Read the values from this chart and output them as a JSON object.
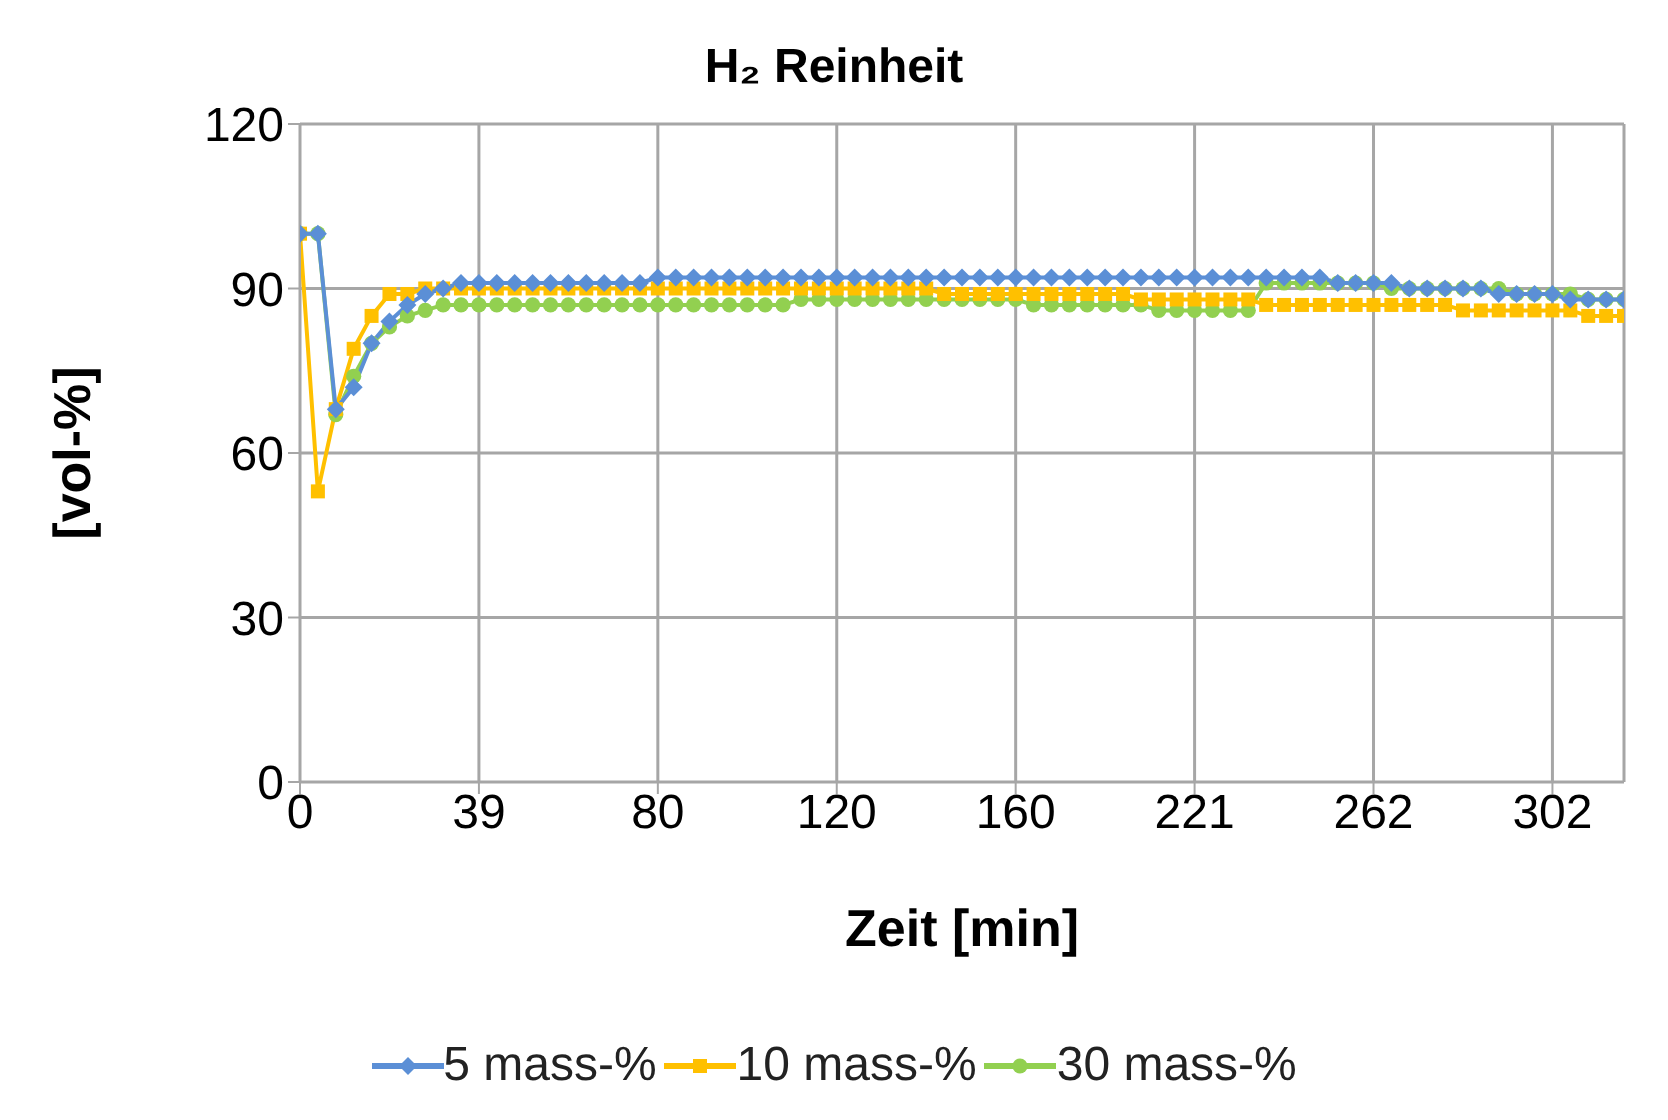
{
  "chart_data": {
    "type": "line",
    "title": "H₂ Reinheit",
    "xlabel": "Zeit [min]",
    "ylabel": "[vol-%]",
    "categories": [
      "0",
      null,
      null,
      null,
      null,
      null,
      null,
      null,
      null,
      null,
      "39",
      null,
      null,
      null,
      null,
      null,
      null,
      null,
      null,
      null,
      "80",
      null,
      null,
      null,
      null,
      null,
      null,
      null,
      null,
      null,
      "120",
      null,
      null,
      null,
      null,
      null,
      null,
      null,
      null,
      null,
      "160",
      null,
      null,
      null,
      null,
      null,
      null,
      null,
      null,
      null,
      "221",
      null,
      null,
      null,
      null,
      null,
      null,
      null,
      null,
      null,
      "262",
      null,
      null,
      null,
      null,
      null,
      null,
      null,
      null,
      null,
      "302",
      null,
      null,
      null,
      null
    ],
    "ylim": [
      0,
      120
    ],
    "yticks": [
      0,
      30,
      60,
      90,
      120
    ],
    "grid": true,
    "legend": "bottom",
    "line_style": "solid",
    "series": [
      {
        "name": "5 mass-%",
        "color": "#5b8fd6",
        "marker": "diamond",
        "values": [
          100,
          100,
          68,
          72,
          80,
          84,
          87,
          89,
          90,
          91,
          91,
          91,
          91,
          91,
          91,
          91,
          91,
          91,
          91,
          91,
          92,
          92,
          92,
          92,
          92,
          92,
          92,
          92,
          92,
          92,
          92,
          92,
          92,
          92,
          92,
          92,
          92,
          92,
          92,
          92,
          92,
          92,
          92,
          92,
          92,
          92,
          92,
          92,
          92,
          92,
          92,
          92,
          92,
          92,
          92,
          92,
          92,
          92,
          91,
          91,
          91,
          91,
          90,
          90,
          90,
          90,
          90,
          89,
          89,
          89,
          89,
          88,
          88,
          88,
          88
        ]
      },
      {
        "name": "10 mass-%",
        "color": "#ffc000",
        "marker": "square",
        "values": [
          100,
          53,
          68,
          79,
          85,
          89,
          89,
          90,
          90,
          90,
          90,
          90,
          90,
          90,
          90,
          90,
          90,
          90,
          90,
          90,
          90,
          90,
          90,
          90,
          90,
          90,
          90,
          90,
          90,
          90,
          90,
          90,
          90,
          90,
          90,
          90,
          89,
          89,
          89,
          89,
          89,
          89,
          89,
          89,
          89,
          89,
          89,
          88,
          88,
          88,
          88,
          88,
          88,
          88,
          87,
          87,
          87,
          87,
          87,
          87,
          87,
          87,
          87,
          87,
          87,
          86,
          86,
          86,
          86,
          86,
          86,
          86,
          85,
          85,
          85
        ]
      },
      {
        "name": "30 mass-%",
        "color": "#92d050",
        "marker": "circle",
        "values": [
          100,
          100,
          67,
          74,
          80,
          83,
          85,
          86,
          87,
          87,
          87,
          87,
          87,
          87,
          87,
          87,
          87,
          87,
          87,
          87,
          87,
          87,
          87,
          87,
          87,
          87,
          87,
          87,
          88,
          88,
          88,
          88,
          88,
          88,
          88,
          88,
          88,
          88,
          88,
          88,
          88,
          87,
          87,
          87,
          87,
          87,
          87,
          87,
          86,
          86,
          86,
          86,
          86,
          86,
          91,
          91,
          91,
          91,
          91,
          91,
          91,
          90,
          90,
          90,
          90,
          90,
          90,
          90,
          89,
          89,
          89,
          89,
          88,
          88,
          88
        ]
      }
    ]
  }
}
